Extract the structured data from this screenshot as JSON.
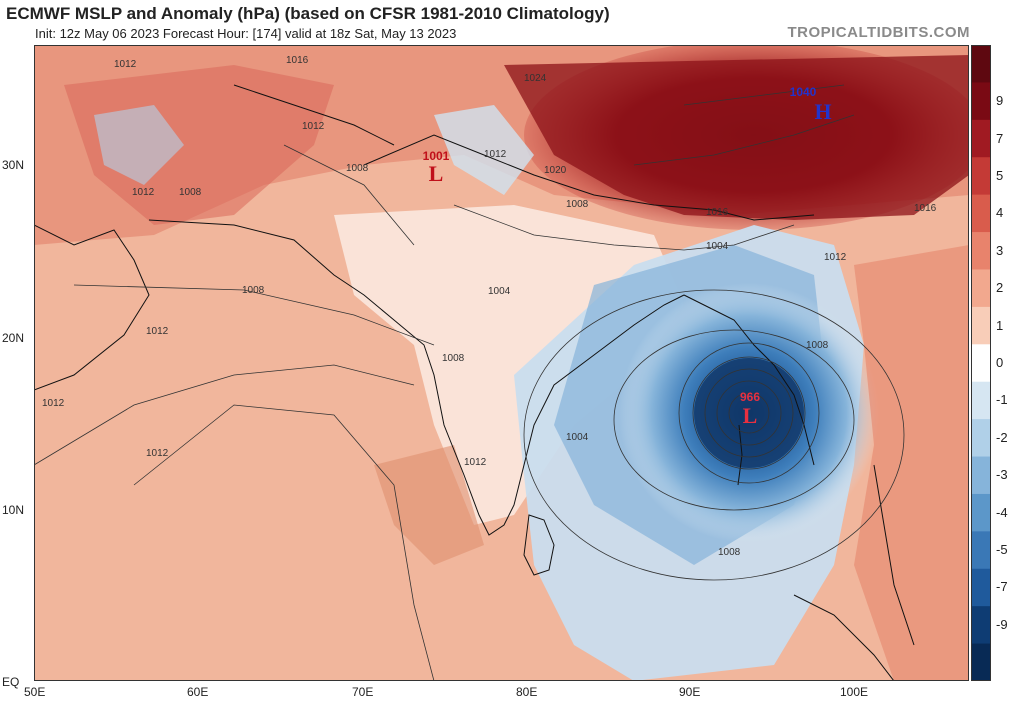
{
  "header": {
    "title": "ECMWF MSLP and Anomaly (hPa) (based on CFSR 1981-2010 Climatology)",
    "subtitle": "Init: 12z May 06 2023   Forecast Hour: [174]   valid at 18z Sat, May 13 2023",
    "watermark": "TROPICALTIDBITS.COM"
  },
  "axes": {
    "lat_labels": [
      "30N",
      "20N",
      "10N",
      "EQ"
    ],
    "lon_labels": [
      "50E",
      "60E",
      "70E",
      "80E",
      "90E",
      "100E"
    ]
  },
  "pressure_centers": [
    {
      "type": "H",
      "value": "1040",
      "color": "#2233cc"
    },
    {
      "type": "L",
      "value": "1001",
      "color": "#c0101a"
    },
    {
      "type": "L",
      "value": "966",
      "color": "#c0101a"
    }
  ],
  "isobar_labels": [
    "1012",
    "1016",
    "1012",
    "1008",
    "1012",
    "1008",
    "1012",
    "1024",
    "1020",
    "1016",
    "1008",
    "1004",
    "1008",
    "1012",
    "1012",
    "1008",
    "1012",
    "1004",
    "1008",
    "1012",
    "1008",
    "1004",
    "1016",
    "1012"
  ],
  "colorbar": {
    "labels": [
      "9",
      "7",
      "5",
      "4",
      "3",
      "2",
      "1",
      "0",
      "-1",
      "-2",
      "-3",
      "-4",
      "-5",
      "-7",
      "-9"
    ],
    "colors": [
      "#7a0a14",
      "#a01a22",
      "#c43a36",
      "#d95c4c",
      "#e8836c",
      "#f2a88e",
      "#f8cdb8",
      "#ffffff",
      "#d6e6f2",
      "#b0d0e8",
      "#86b4da",
      "#5c97c9",
      "#3a78b6",
      "#1f5a9c",
      "#0e3c73"
    ]
  }
}
